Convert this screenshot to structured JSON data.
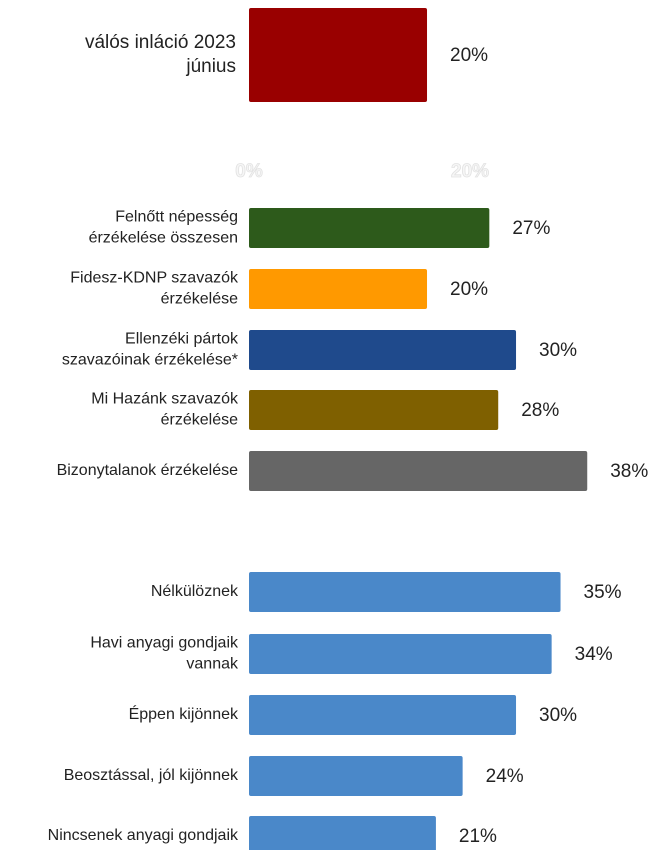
{
  "chart_data": {
    "type": "hbar",
    "categories": [
      [
        "válós inláció 2023",
        "június"
      ],
      [
        "Felnőtt népesség",
        "érzékelése összesen"
      ],
      [
        "Fidesz-KDNP szavazók",
        "érzékelése"
      ],
      [
        "Ellenzéki pártok",
        "szavazóinak érzékelése*"
      ],
      [
        "Mi Hazánk szavazók",
        "érzékelése"
      ],
      [
        "Bizonytalanok érzékelése"
      ],
      [
        "Nélkülöznek"
      ],
      [
        "Havi anyagi gondjaik",
        "vannak"
      ],
      [
        "Éppen kijönnek"
      ],
      [
        "Beosztással, jól kijönnek"
      ],
      [
        "Nincsenek anyagi gondjaik"
      ]
    ],
    "values": [
      20,
      27,
      20,
      30,
      28,
      38,
      35,
      34,
      30,
      24,
      21
    ],
    "value_labels": [
      "20%",
      "27%",
      "20%",
      "30%",
      "28%",
      "38%",
      "35%",
      "34%",
      "30%",
      "24%",
      "21%"
    ],
    "colors": [
      "#990000",
      "#2d5a1b",
      "#ff9900",
      "#1f4a8c",
      "#7f6000",
      "#666666",
      "#4a88c9",
      "#4a88c9",
      "#4a88c9",
      "#4a88c9",
      "#4a88c9"
    ],
    "xlim": [
      0,
      45.5
    ],
    "xticks": [
      {
        "value": 0,
        "label": "0%"
      },
      {
        "value": 20,
        "label": "20%"
      }
    ]
  }
}
